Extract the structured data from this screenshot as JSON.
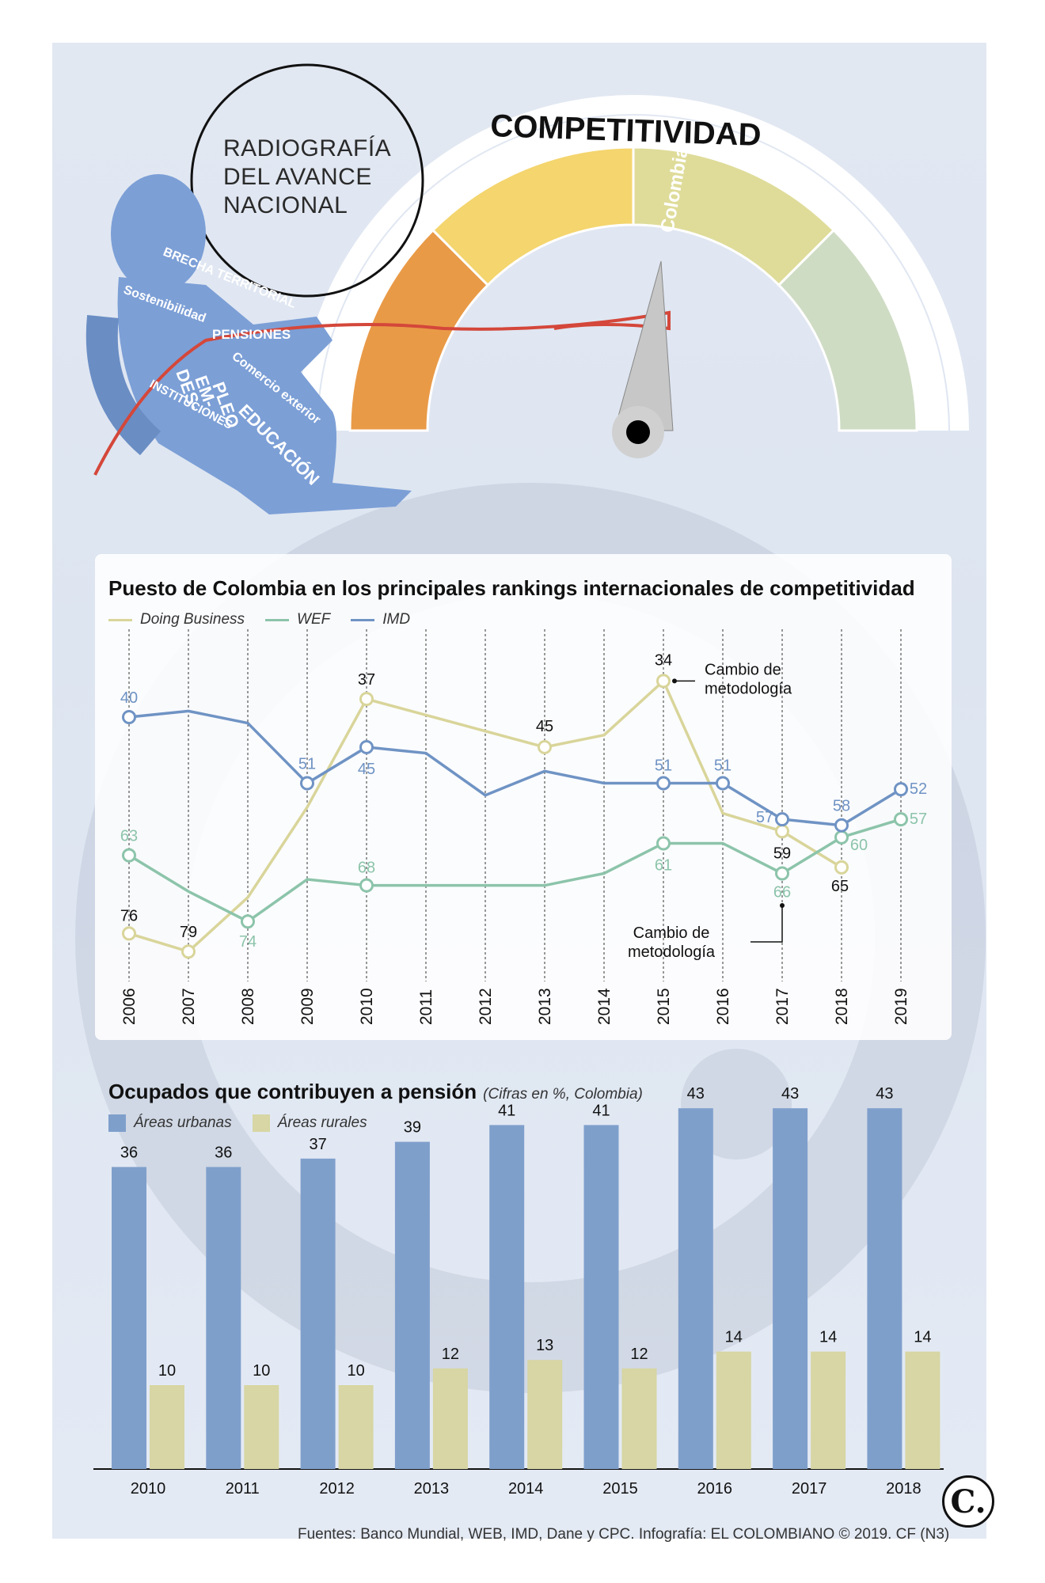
{
  "hero": {
    "title_lines": [
      "RADIOGRAFÍA",
      "DEL AVANCE",
      "NACIONAL"
    ],
    "gauge_title": "COMPETITIVIDAD",
    "gauge_segment_label": "Colombia",
    "figure_labels": [
      "BRECHA TERRITORIAL",
      "Sostenibilidad",
      "PENSIONES",
      "DES-",
      "EM-",
      "PLEO",
      "Comercio exterior",
      "INSTITUCIONES",
      "EDUCACIÓN"
    ],
    "gauge_colors": [
      "#e99a47",
      "#f4d56e",
      "#dfdc9a",
      "#cfdcc4"
    ]
  },
  "chart_data": [
    {
      "type": "line",
      "title": "Puesto de Colombia en los principales rankings internacionales de competitividad",
      "x": [
        "2006",
        "2007",
        "2008",
        "2009",
        "2010",
        "2011",
        "2012",
        "2013",
        "2014",
        "2015",
        "2016",
        "2017",
        "2018",
        "2019"
      ],
      "ylim": [
        30,
        82
      ],
      "y_inverted": true,
      "series": [
        {
          "name": "Doing Business",
          "color": "#d9d59a",
          "values": [
            76,
            79,
            null,
            null,
            37,
            null,
            null,
            45,
            null,
            34,
            null,
            59,
            65,
            null
          ]
        },
        {
          "name": "WEF",
          "color": "#8cc4aa",
          "values": [
            63,
            null,
            74,
            null,
            68,
            null,
            null,
            null,
            null,
            61,
            null,
            66,
            60,
            57
          ]
        },
        {
          "name": "IMD",
          "color": "#6f93c4",
          "values": [
            40,
            null,
            null,
            51,
            45,
            null,
            null,
            null,
            null,
            51,
            51,
            57,
            58,
            52
          ]
        }
      ],
      "annotations": [
        {
          "text": "Cambio de metodología",
          "x": "2015"
        },
        {
          "text": "Cambio de metodología",
          "x": "2017"
        }
      ]
    },
    {
      "type": "bar",
      "title": "Ocupados que contribuyen a pensión",
      "subtitle": "(Cifras en %, Colombia)",
      "categories": [
        "2010",
        "2011",
        "2012",
        "2013",
        "2014",
        "2015",
        "2016",
        "2017",
        "2018"
      ],
      "ylim": [
        0,
        45
      ],
      "series": [
        {
          "name": "Áreas urbanas",
          "color": "#7f9fcb",
          "values": [
            36,
            36,
            37,
            39,
            41,
            41,
            43,
            43,
            43
          ]
        },
        {
          "name": "Áreas rurales",
          "color": "#d7d6a4",
          "values": [
            10,
            10,
            10,
            12,
            13,
            12,
            14,
            14,
            14
          ]
        }
      ]
    }
  ],
  "source": "Fuentes: Banco Mundial, WEB, IMD, Dane y CPC. Infografía: EL COLOMBIANO © 2019. CF (N3)",
  "logo": "C."
}
